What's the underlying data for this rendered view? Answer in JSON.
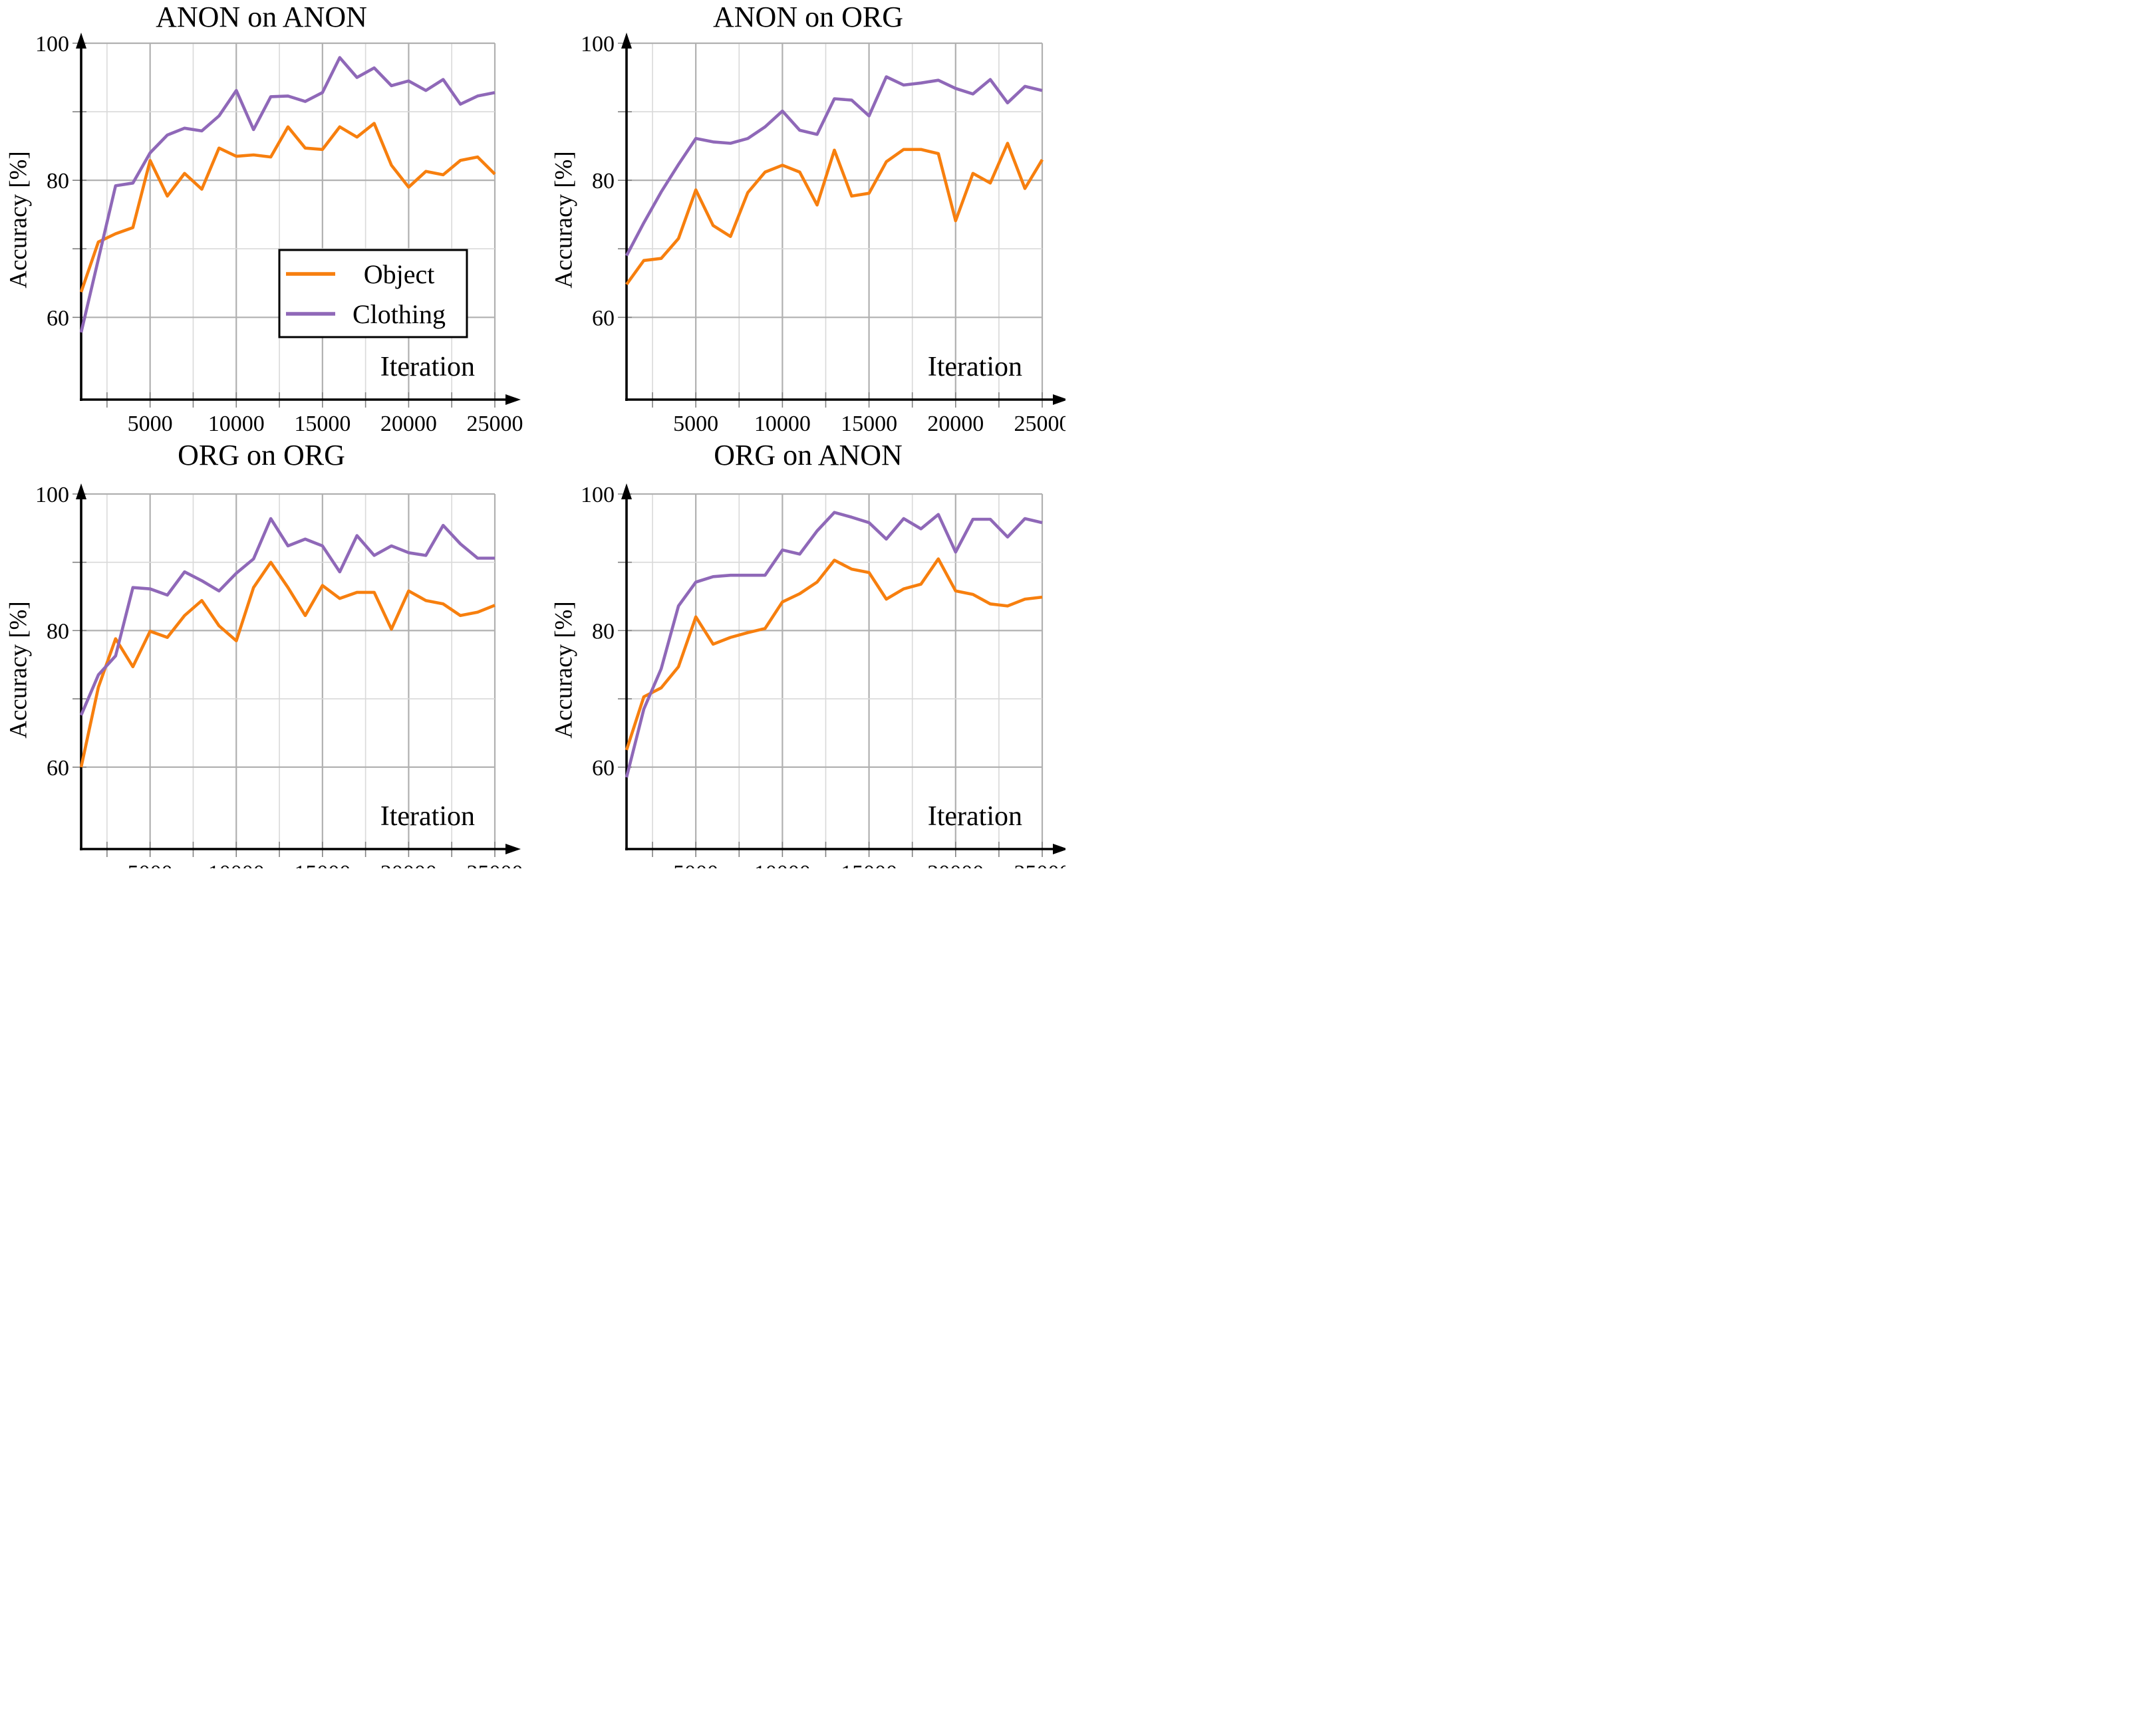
{
  "page": {
    "background": "#ffffff",
    "description": "2x2 grid of accuracy-vs-iteration line charts"
  },
  "colors": {
    "object": "#F77F0E",
    "clothing": "#8F68B8",
    "axis": "#000000",
    "grid_major": "#B0B0B0",
    "grid_minor": "#D9D9D9",
    "tick": "#808080",
    "text": "#000000",
    "legend_border": "#000000",
    "legend_background": "#ffffff"
  },
  "axes": {
    "ylabel": "Accuracy [%]",
    "xlabel": "Iteration",
    "ytick_labels": [
      "100",
      "80",
      "60"
    ],
    "ytick_values": [
      100,
      80,
      60
    ],
    "xtick_labels": [
      "5000",
      "10000",
      "15000",
      "20000",
      "25000"
    ],
    "xtick_values": [
      5000,
      10000,
      15000,
      20000,
      25000
    ],
    "minor_x_step": 2500,
    "minor_y_step": 10,
    "grid": "on"
  },
  "legend": {
    "items": [
      {
        "label": "Object",
        "color_key": "object"
      },
      {
        "label": "Clothing",
        "color_key": "clothing"
      }
    ]
  },
  "chart_data": [
    {
      "type": "line",
      "title": "ANON on ANON",
      "xlabel": "Iteration",
      "ylabel": "Accuracy [%]",
      "xlim": [
        1000,
        25000
      ],
      "ylim": [
        48,
        100
      ],
      "legend": true,
      "legend_position": "lower center-right inside",
      "x": [
        1000,
        2000,
        3000,
        4000,
        5000,
        6000,
        7000,
        8000,
        9000,
        10000,
        11000,
        12000,
        13000,
        14000,
        15000,
        16000,
        17000,
        18000,
        19000,
        20000,
        21000,
        22000,
        23000,
        24000,
        25000
      ],
      "series": [
        {
          "name": "Object",
          "color_key": "object",
          "values": [
            63.7,
            71.0,
            72.2,
            73.1,
            82.9,
            77.7,
            81.0,
            78.7,
            84.7,
            83.5,
            83.7,
            83.4,
            87.8,
            84.7,
            84.5,
            87.8,
            86.3,
            88.3,
            82.2,
            79.0,
            81.3,
            80.8,
            82.9,
            83.4,
            80.9
          ]
        },
        {
          "name": "Clothing",
          "color_key": "clothing",
          "values": [
            57.8,
            68.5,
            79.2,
            79.6,
            84.0,
            86.6,
            87.6,
            87.2,
            89.4,
            93.1,
            87.4,
            92.2,
            92.3,
            91.5,
            92.8,
            97.9,
            95.0,
            96.4,
            93.8,
            94.5,
            93.1,
            94.7,
            91.1,
            92.3,
            92.8
          ]
        }
      ]
    },
    {
      "type": "line",
      "title": "ANON on ORG",
      "xlabel": "Iteration",
      "ylabel": "Accuracy [%]",
      "xlim": [
        1000,
        25000
      ],
      "ylim": [
        48,
        100
      ],
      "legend": false,
      "x": [
        1000,
        2000,
        3000,
        4000,
        5000,
        6000,
        7000,
        8000,
        9000,
        10000,
        11000,
        12000,
        13000,
        14000,
        15000,
        16000,
        17000,
        18000,
        19000,
        20000,
        21000,
        22000,
        23000,
        24000,
        25000
      ],
      "series": [
        {
          "name": "Object",
          "color_key": "object",
          "values": [
            64.8,
            68.3,
            68.6,
            71.5,
            78.6,
            73.4,
            71.8,
            78.2,
            81.2,
            82.2,
            81.2,
            76.4,
            84.4,
            77.7,
            78.1,
            82.7,
            84.5,
            84.5,
            83.9,
            74.1,
            81.0,
            79.6,
            85.4,
            78.8,
            83.0
          ]
        },
        {
          "name": "Clothing",
          "color_key": "clothing",
          "values": [
            69.0,
            73.8,
            78.3,
            82.3,
            86.1,
            85.6,
            85.4,
            86.1,
            87.8,
            90.1,
            87.3,
            86.7,
            91.9,
            91.7,
            89.4,
            95.1,
            93.9,
            94.2,
            94.6,
            93.4,
            92.6,
            94.7,
            91.3,
            93.7,
            93.1
          ]
        }
      ]
    },
    {
      "type": "line",
      "title": "ORG on ORG",
      "xlabel": "Iteration",
      "ylabel": "Accuracy [%]",
      "xlim": [
        1000,
        25000
      ],
      "ylim": [
        48,
        100
      ],
      "legend": false,
      "x": [
        1000,
        2000,
        3000,
        4000,
        5000,
        6000,
        7000,
        8000,
        9000,
        10000,
        11000,
        12000,
        13000,
        14000,
        15000,
        16000,
        17000,
        18000,
        19000,
        20000,
        21000,
        22000,
        23000,
        24000,
        25000
      ],
      "series": [
        {
          "name": "Object",
          "color_key": "object",
          "values": [
            60.0,
            71.7,
            78.8,
            74.7,
            79.9,
            79.0,
            82.2,
            84.4,
            80.7,
            78.5,
            86.3,
            90.0,
            86.3,
            82.2,
            86.6,
            84.7,
            85.6,
            85.6,
            80.2,
            85.8,
            84.4,
            83.9,
            82.2,
            82.7,
            83.7
          ]
        },
        {
          "name": "Clothing",
          "color_key": "clothing",
          "values": [
            67.6,
            73.5,
            76.3,
            86.3,
            86.1,
            85.2,
            88.6,
            87.3,
            85.8,
            88.4,
            90.5,
            96.4,
            92.4,
            93.4,
            92.4,
            88.6,
            93.9,
            91.0,
            92.4,
            91.4,
            91.0,
            95.4,
            92.7,
            90.6,
            90.6
          ]
        }
      ]
    },
    {
      "type": "line",
      "title": "ORG on ANON",
      "xlabel": "Iteration",
      "ylabel": "Accuracy [%]",
      "xlim": [
        1000,
        25000
      ],
      "ylim": [
        48,
        100
      ],
      "legend": false,
      "x": [
        1000,
        2000,
        3000,
        4000,
        5000,
        6000,
        7000,
        8000,
        9000,
        10000,
        11000,
        12000,
        13000,
        14000,
        15000,
        16000,
        17000,
        18000,
        19000,
        20000,
        21000,
        22000,
        23000,
        24000,
        25000
      ],
      "series": [
        {
          "name": "Object",
          "color_key": "object",
          "values": [
            62.5,
            70.3,
            71.6,
            74.7,
            82.0,
            78.0,
            79.0,
            79.7,
            80.3,
            84.2,
            85.4,
            87.1,
            90.3,
            89.0,
            88.5,
            84.6,
            86.1,
            86.8,
            90.5,
            85.8,
            85.3,
            83.9,
            83.6,
            84.6,
            84.9
          ]
        },
        {
          "name": "Clothing",
          "color_key": "clothing",
          "values": [
            58.5,
            68.5,
            74.4,
            83.6,
            87.1,
            87.9,
            88.1,
            88.1,
            88.1,
            91.8,
            91.2,
            94.6,
            97.3,
            96.6,
            95.8,
            93.4,
            96.4,
            94.9,
            97.0,
            91.5,
            96.3,
            96.3,
            93.7,
            96.4,
            95.8
          ]
        }
      ]
    }
  ]
}
